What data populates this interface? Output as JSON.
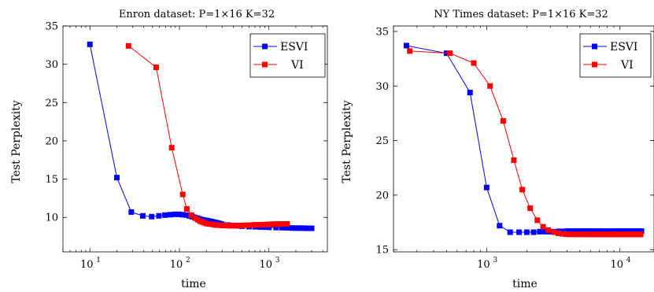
{
  "chart_data": [
    {
      "type": "line",
      "title": "Enron dataset: P=1×16 K=32",
      "xlabel": "time",
      "ylabel": "Test Perplexity",
      "xscale": "log",
      "xlim": [
        5,
        4500
      ],
      "ylim": [
        5.5,
        35
      ],
      "xticks": [
        {
          "value": 10,
          "base": "10",
          "exp": "1"
        },
        {
          "value": 100,
          "base": "10",
          "exp": "2"
        },
        {
          "value": 1000,
          "base": "10",
          "exp": "3"
        }
      ],
      "yticks": [
        10,
        15,
        20,
        25,
        30,
        35
      ],
      "legend_position": "top-right",
      "series": [
        {
          "name": "ESVI",
          "color": "#0000ff",
          "x": [
            10,
            20,
            29,
            39,
            49,
            59,
            69,
            79,
            89,
            99,
            109,
            119,
            129,
            139,
            149,
            159,
            169,
            179,
            189,
            199,
            209,
            219,
            229,
            239,
            249,
            259,
            269,
            279,
            289,
            299,
            350,
            400,
            450,
            500,
            600,
            700,
            800,
            900,
            1000,
            1200,
            1400,
            1600,
            1800,
            2000,
            2200,
            2400,
            2600,
            2800,
            3000
          ],
          "y": [
            32.6,
            15.2,
            10.7,
            10.2,
            10.1,
            10.2,
            10.3,
            10.35,
            10.4,
            10.4,
            10.35,
            10.3,
            10.2,
            10.1,
            10.0,
            9.9,
            9.8,
            9.7,
            9.65,
            9.6,
            9.55,
            9.5,
            9.45,
            9.4,
            9.35,
            9.3,
            9.25,
            9.2,
            9.15,
            9.1,
            9.0,
            8.95,
            8.9,
            8.85,
            8.8,
            8.78,
            8.75,
            8.73,
            8.7,
            8.68,
            8.66,
            8.64,
            8.62,
            8.6,
            8.6,
            8.6,
            8.58,
            8.58,
            8.58
          ]
        },
        {
          "name": "VI",
          "color": "#ff0000",
          "x": [
            27,
            55,
            82,
            109,
            121,
            136,
            150,
            160,
            170,
            180,
            190,
            200,
            215,
            230,
            245,
            260,
            280,
            300,
            320,
            340,
            360,
            380,
            400,
            430,
            460,
            500,
            550,
            600,
            650,
            700,
            750,
            800,
            850,
            900,
            950,
            1000,
            1050,
            1100,
            1150,
            1200,
            1250,
            1300,
            1350,
            1400,
            1450,
            1500,
            1550,
            1600
          ],
          "y": [
            32.4,
            29.6,
            19.1,
            13.0,
            11.1,
            10.3,
            9.9,
            9.7,
            9.5,
            9.4,
            9.3,
            9.2,
            9.15,
            9.1,
            9.05,
            9.0,
            8.98,
            8.95,
            8.95,
            8.93,
            8.93,
            8.92,
            8.92,
            8.92,
            8.93,
            8.95,
            8.97,
            8.98,
            9.0,
            9.02,
            9.03,
            9.04,
            9.05,
            9.06,
            9.07,
            9.08,
            9.1,
            9.1,
            9.12,
            9.12,
            9.13,
            9.13,
            9.14,
            9.14,
            9.15,
            9.15,
            9.15,
            9.15
          ]
        }
      ]
    },
    {
      "type": "line",
      "title": "NY Times dataset: P=1×16 K=32",
      "xlabel": "time",
      "ylabel": "Test Perplexity",
      "xscale": "log",
      "xlim": [
        200,
        18000
      ],
      "ylim": [
        14.8,
        35.5
      ],
      "xticks": [
        {
          "value": 1000,
          "base": "10",
          "exp": "3"
        },
        {
          "value": 10000,
          "base": "10",
          "exp": "4"
        }
      ],
      "yticks": [
        15,
        20,
        25,
        30,
        35
      ],
      "legend_position": "top-right",
      "series": [
        {
          "name": "ESVI",
          "color": "#0000ff",
          "x": [
            250,
            500,
            750,
            1000,
            1250,
            1500,
            1750,
            2000,
            2250,
            2500,
            2750,
            3000,
            3250,
            3500,
            3750,
            4000,
            4250,
            4500,
            4750,
            5000,
            5250,
            5500,
            5750,
            6000,
            6500,
            7000,
            7500,
            8000,
            8500,
            9000,
            9500,
            10000,
            10500,
            11000,
            11500,
            12000,
            12500,
            13000,
            13500,
            14000,
            14500
          ],
          "y": [
            33.7,
            33.0,
            29.4,
            20.7,
            17.2,
            16.6,
            16.6,
            16.6,
            16.6,
            16.65,
            16.65,
            16.65,
            16.65,
            16.68,
            16.68,
            16.7,
            16.7,
            16.7,
            16.7,
            16.7,
            16.7,
            16.7,
            16.7,
            16.7,
            16.7,
            16.7,
            16.7,
            16.7,
            16.7,
            16.7,
            16.7,
            16.7,
            16.7,
            16.7,
            16.7,
            16.7,
            16.7,
            16.7,
            16.7,
            16.7,
            16.7
          ]
        },
        {
          "name": "VI",
          "color": "#ff0000",
          "x": [
            265,
            530,
            800,
            1060,
            1330,
            1600,
            1850,
            2120,
            2400,
            2650,
            2900,
            3200,
            3450,
            3700,
            3950,
            4200,
            4500,
            4750,
            5000,
            5300,
            5600,
            5900,
            6200,
            6500,
            6800,
            7100,
            7400,
            7700,
            8000,
            8300,
            8600,
            8900,
            9200,
            9500,
            9800,
            10100,
            10400,
            10700,
            11000,
            11300,
            11600,
            11900,
            12200,
            12500,
            12800,
            13100,
            13400,
            13700,
            14000,
            14300
          ],
          "y": [
            33.2,
            33.0,
            32.1,
            30.0,
            26.8,
            23.2,
            20.5,
            18.8,
            17.7,
            17.1,
            16.8,
            16.6,
            16.5,
            16.45,
            16.42,
            16.4,
            16.4,
            16.4,
            16.4,
            16.4,
            16.4,
            16.4,
            16.4,
            16.4,
            16.4,
            16.4,
            16.4,
            16.4,
            16.4,
            16.4,
            16.4,
            16.4,
            16.4,
            16.4,
            16.4,
            16.4,
            16.4,
            16.4,
            16.4,
            16.4,
            16.4,
            16.4,
            16.4,
            16.4,
            16.4,
            16.4,
            16.4,
            16.4,
            16.4,
            16.4
          ]
        }
      ]
    }
  ]
}
